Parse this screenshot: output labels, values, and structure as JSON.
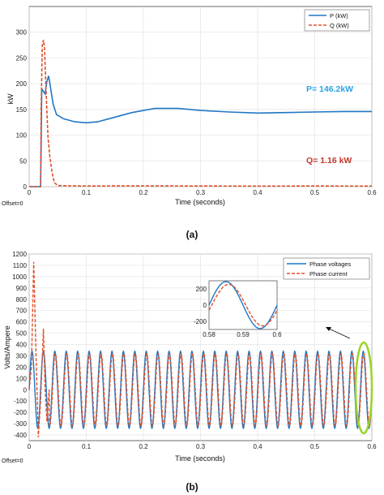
{
  "colors": {
    "blue": "#1f77c4",
    "red": "#e0502a",
    "green": "#9ad32a",
    "annot_blue": "#2aa3e6",
    "annot_red": "#c0392b"
  },
  "chart_data": [
    {
      "type": "line",
      "panel_caption": "(a)",
      "xlabel": "Time (seconds)",
      "ylabel": "kW",
      "xlim": [
        0,
        0.6
      ],
      "ylim": [
        0,
        350
      ],
      "xticks": [
        "0",
        "0.1",
        "0.2",
        "0.3",
        "0.4",
        "0.5",
        "0.6"
      ],
      "yticks": [
        "0",
        "50",
        "100",
        "150",
        "200",
        "250",
        "300"
      ],
      "grid": true,
      "legend_position": "top-right",
      "offset_label": "Offset=0",
      "series": [
        {
          "name": "P (kW)",
          "style": "solid",
          "color": "#1f77c4",
          "x": [
            0,
            0.02,
            0.021,
            0.022,
            0.025,
            0.028,
            0.031,
            0.034,
            0.037,
            0.042,
            0.048,
            0.06,
            0.08,
            0.1,
            0.12,
            0.14,
            0.18,
            0.22,
            0.26,
            0.3,
            0.35,
            0.4,
            0.45,
            0.5,
            0.55,
            0.6
          ],
          "y": [
            0,
            0,
            80,
            190,
            185,
            180,
            205,
            215,
            195,
            160,
            140,
            132,
            126,
            124,
            126,
            132,
            144,
            152,
            152,
            148,
            145,
            143,
            144,
            145,
            146,
            146
          ]
        },
        {
          "name": "Q (kW)",
          "style": "dashed",
          "color": "#e0502a",
          "x": [
            0,
            0.02,
            0.021,
            0.023,
            0.025,
            0.027,
            0.029,
            0.031,
            0.033,
            0.036,
            0.04,
            0.044,
            0.05,
            0.07,
            0.1,
            0.2,
            0.3,
            0.4,
            0.5,
            0.6
          ],
          "y": [
            0,
            0,
            150,
            275,
            285,
            270,
            205,
            145,
            95,
            60,
            28,
            8,
            2,
            1.5,
            1.2,
            1.5,
            1.2,
            1.1,
            1.2,
            1.16
          ]
        }
      ],
      "annotations": [
        "P= 146.2kW",
        "Q= 1.16 kW"
      ]
    },
    {
      "type": "line",
      "panel_caption": "(b)",
      "xlabel": "Time (seconds)",
      "ylabel": "Volts/Ampere",
      "xlim": [
        0,
        0.6
      ],
      "ylim": [
        -450,
        1200
      ],
      "xticks": [
        "0",
        "0.1",
        "0.2",
        "0.3",
        "0.4",
        "0.5",
        "0.6"
      ],
      "yticks": [
        "-400",
        "-300",
        "-200",
        "-100",
        "0",
        "100",
        "200",
        "300",
        "400",
        "500",
        "600",
        "700",
        "800",
        "900",
        "1000",
        "1100",
        "1200"
      ],
      "grid": true,
      "legend_position": "top-right",
      "offset_label": "Offset=0",
      "series": [
        {
          "name": "Phase voltages",
          "style": "solid",
          "color": "#1f77c4",
          "amplitude": 340,
          "frequency_hz": 50
        },
        {
          "name": "Phase current",
          "style": "dashed",
          "color": "#e0502a",
          "amplitude": 320,
          "frequency_hz": 50,
          "startup_peaks": [
            1130,
            -420,
            540,
            -280
          ]
        }
      ],
      "inset": {
        "xlim": [
          0.58,
          0.6
        ],
        "ylim": [
          -300,
          300
        ],
        "xticks": [
          "0.58",
          "0.59",
          "0.6"
        ],
        "yticks": [
          "200",
          "0",
          "-200"
        ]
      }
    }
  ]
}
